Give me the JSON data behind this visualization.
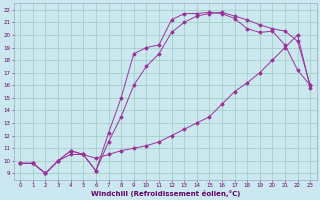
{
  "xlabel": "Windchill (Refroidissement éolien,°C)",
  "bg_color": "#cbe8f0",
  "line_color": "#993399",
  "grid_color": "#99ccbb",
  "xlim": [
    -0.5,
    23.5
  ],
  "ylim": [
    8.5,
    22.5
  ],
  "xticks": [
    0,
    1,
    2,
    3,
    4,
    5,
    6,
    7,
    8,
    9,
    10,
    11,
    12,
    13,
    14,
    15,
    16,
    17,
    18,
    19,
    20,
    21,
    22,
    23
  ],
  "yticks": [
    9,
    10,
    11,
    12,
    13,
    14,
    15,
    16,
    17,
    18,
    19,
    20,
    21,
    22
  ],
  "curve1_x": [
    0,
    1,
    2,
    3,
    4,
    5,
    6,
    7,
    8,
    9,
    10,
    11,
    12,
    13,
    14,
    15,
    16,
    17,
    18,
    19,
    20,
    21,
    22,
    23
  ],
  "curve1_y": [
    9.8,
    9.8,
    9.0,
    10.0,
    10.8,
    10.5,
    9.2,
    12.2,
    15.0,
    18.5,
    19.0,
    19.2,
    21.2,
    21.7,
    21.7,
    21.8,
    21.7,
    21.3,
    20.5,
    20.2,
    20.3,
    19.2,
    17.2,
    16.0
  ],
  "curve2_x": [
    0,
    1,
    2,
    3,
    4,
    5,
    6,
    7,
    8,
    9,
    10,
    11,
    12,
    13,
    14,
    15,
    16,
    17,
    18,
    19,
    20,
    21,
    22,
    23
  ],
  "curve2_y": [
    9.8,
    9.8,
    9.0,
    10.0,
    10.8,
    10.5,
    9.2,
    11.5,
    13.5,
    16.0,
    17.5,
    18.5,
    20.2,
    21.0,
    21.5,
    21.7,
    21.8,
    21.5,
    21.2,
    20.8,
    20.5,
    20.3,
    19.5,
    16.0
  ],
  "curve3_x": [
    0,
    1,
    2,
    3,
    4,
    5,
    6,
    7,
    8,
    9,
    10,
    11,
    12,
    13,
    14,
    15,
    16,
    17,
    18,
    19,
    20,
    21,
    22,
    23
  ],
  "curve3_y": [
    9.8,
    9.8,
    9.0,
    10.0,
    10.5,
    10.5,
    10.2,
    10.5,
    10.8,
    11.0,
    11.2,
    11.5,
    12.0,
    12.5,
    13.0,
    13.5,
    14.5,
    15.5,
    16.2,
    17.0,
    18.0,
    19.0,
    20.0,
    15.8
  ]
}
